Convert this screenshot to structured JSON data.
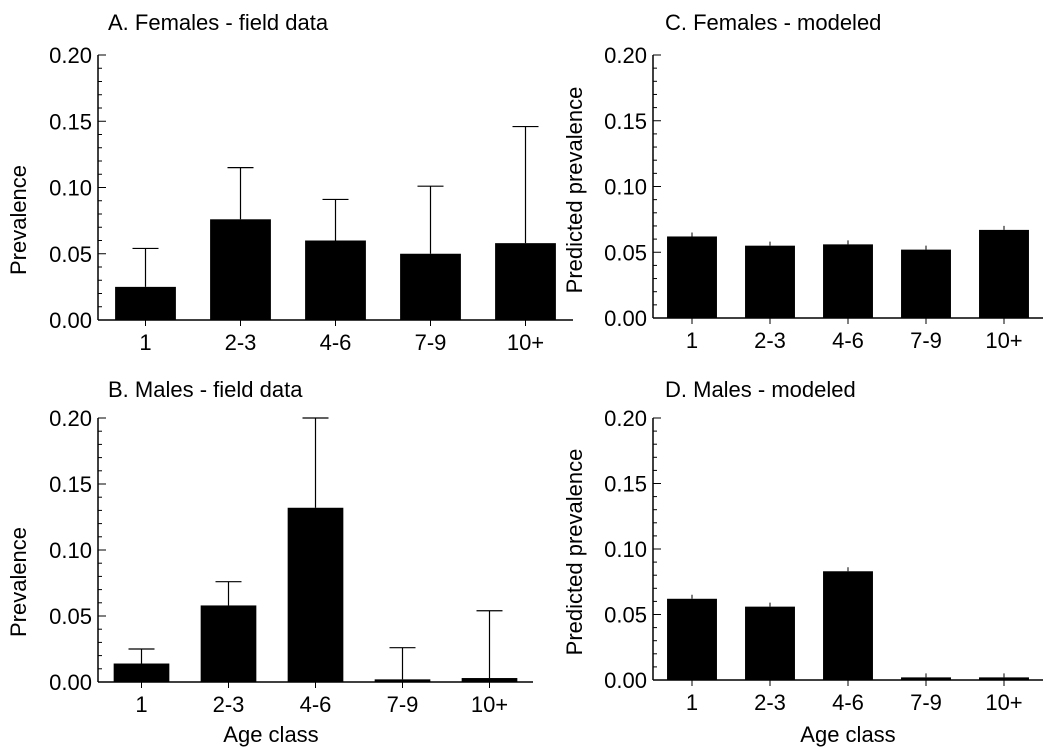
{
  "chart_data": [
    {
      "type": "bar",
      "title": "A. Females - field data",
      "xlabel": "",
      "ylabel": "Prevalence",
      "categories": [
        "1",
        "2-3",
        "4-6",
        "7-9",
        "10+"
      ],
      "values": [
        0.025,
        0.076,
        0.06,
        0.05,
        0.058
      ],
      "error_upper": [
        0.054,
        0.115,
        0.091,
        0.101,
        0.146
      ],
      "ylim": [
        0,
        0.2
      ],
      "yticks": [
        "0.00",
        "0.05",
        "0.10",
        "0.15",
        "0.20"
      ],
      "bar_color": "#000000"
    },
    {
      "type": "bar",
      "title": "C. Females - modeled",
      "xlabel": "",
      "ylabel": "Predicted prevalence",
      "categories": [
        "1",
        "2-3",
        "4-6",
        "7-9",
        "10+"
      ],
      "values": [
        0.062,
        0.055,
        0.056,
        0.052,
        0.067
      ],
      "ylim": [
        0,
        0.2
      ],
      "yticks": [
        "0.00",
        "0.05",
        "0.10",
        "0.15",
        "0.20"
      ],
      "bar_color": "#000000"
    },
    {
      "type": "bar",
      "title": "B. Males - field data",
      "xlabel": "Age class",
      "ylabel": "Prevalence",
      "categories": [
        "1",
        "2-3",
        "4-6",
        "7-9",
        "10+"
      ],
      "values": [
        0.014,
        0.058,
        0.132,
        0.002,
        0.003
      ],
      "error_upper": [
        0.025,
        0.076,
        0.2,
        0.026,
        0.054
      ],
      "ylim": [
        0,
        0.2
      ],
      "yticks": [
        "0.00",
        "0.05",
        "0.10",
        "0.15",
        "0.20"
      ],
      "bar_color": "#000000"
    },
    {
      "type": "bar",
      "title": "D. Males - modeled",
      "xlabel": "Age class",
      "ylabel": "Predicted prevalence",
      "categories": [
        "1",
        "2-3",
        "4-6",
        "7-9",
        "10+"
      ],
      "values": [
        0.062,
        0.056,
        0.083,
        0.002,
        0.002
      ],
      "ylim": [
        0,
        0.2
      ],
      "yticks": [
        "0.00",
        "0.05",
        "0.10",
        "0.15",
        "0.20"
      ],
      "bar_color": "#000000"
    }
  ]
}
